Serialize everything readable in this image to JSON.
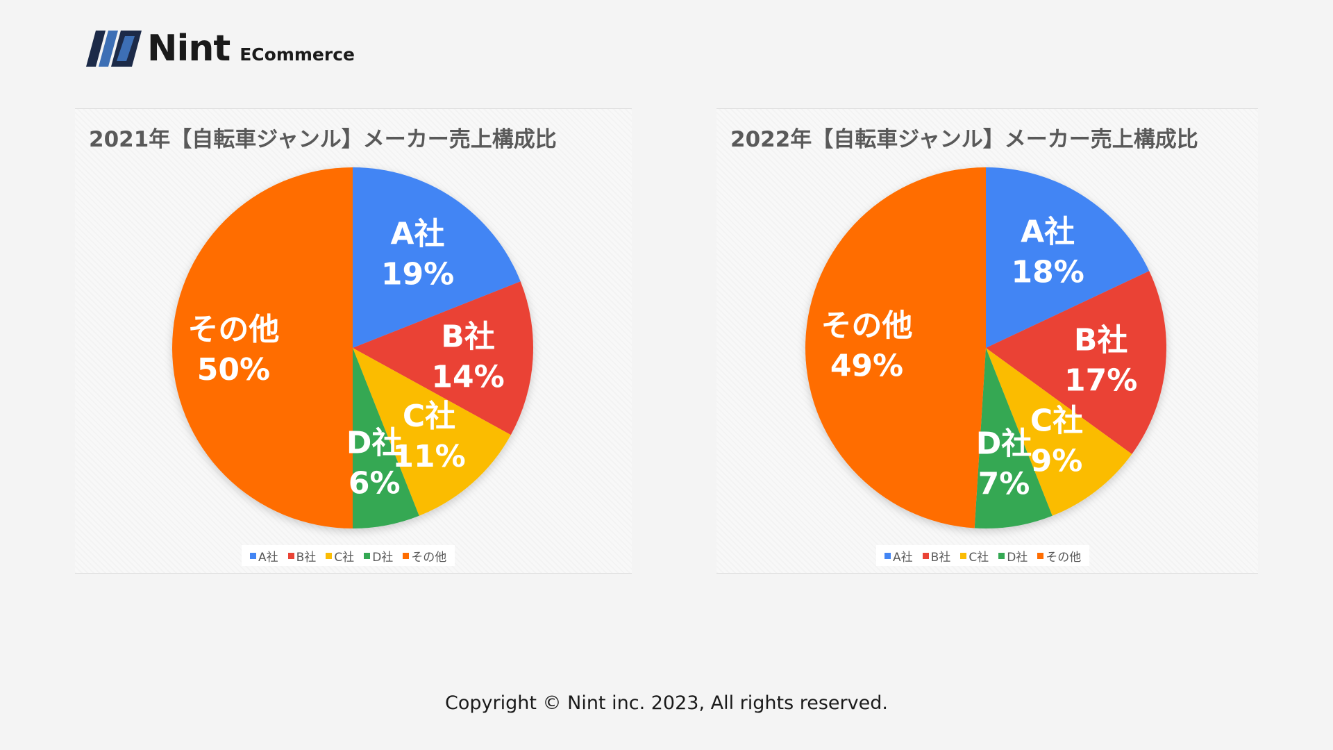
{
  "brand": {
    "name": "Nint",
    "sub": "ECommerce",
    "colors": {
      "dark": "#1c2a48",
      "blue": "#3d6fb5"
    }
  },
  "footer": {
    "text": "Copyright © Nint inc. 2023, All rights reserved."
  },
  "chart_data": [
    {
      "type": "pie",
      "title": "2021年【自転車ジャンル】メーカー売上構成比",
      "categories": [
        "A社",
        "B社",
        "C社",
        "D社",
        "その他"
      ],
      "values": [
        19,
        14,
        11,
        6,
        50
      ],
      "value_labels": [
        "19%",
        "14%",
        "11%",
        "6%",
        "50%"
      ],
      "colors": [
        "#4285f4",
        "#ea4335",
        "#fbbc04",
        "#34a853",
        "#ff6d01"
      ],
      "legend_position": "bottom"
    },
    {
      "type": "pie",
      "title": "2022年【自転車ジャンル】メーカー売上構成比",
      "categories": [
        "A社",
        "B社",
        "C社",
        "D社",
        "その他"
      ],
      "values": [
        18,
        17,
        9,
        7,
        49
      ],
      "value_labels": [
        "18%",
        "17%",
        "9%",
        "7%",
        "49%"
      ],
      "colors": [
        "#4285f4",
        "#ea4335",
        "#fbbc04",
        "#34a853",
        "#ff6d01"
      ],
      "legend_position": "bottom"
    }
  ]
}
